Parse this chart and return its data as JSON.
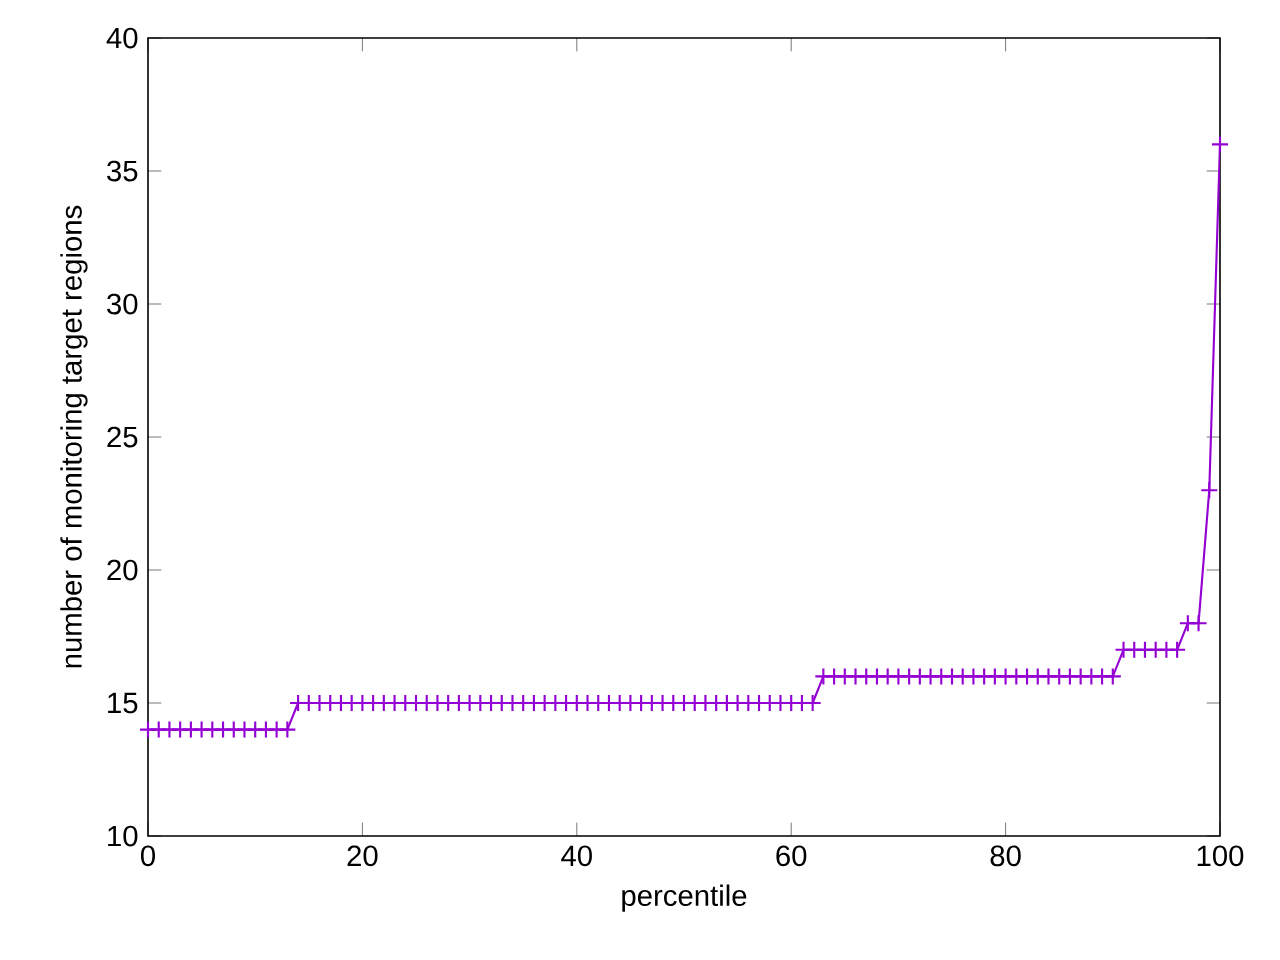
{
  "chart_data": {
    "type": "line",
    "xlabel": "percentile",
    "ylabel": "number of monitoring target regions",
    "x": [
      0,
      1,
      2,
      3,
      4,
      5,
      6,
      7,
      8,
      9,
      10,
      11,
      12,
      13,
      14,
      15,
      16,
      17,
      18,
      19,
      20,
      21,
      22,
      23,
      24,
      25,
      26,
      27,
      28,
      29,
      30,
      31,
      32,
      33,
      34,
      35,
      36,
      37,
      38,
      39,
      40,
      41,
      42,
      43,
      44,
      45,
      46,
      47,
      48,
      49,
      50,
      51,
      52,
      53,
      54,
      55,
      56,
      57,
      58,
      59,
      60,
      61,
      62,
      63,
      64,
      65,
      66,
      67,
      68,
      69,
      70,
      71,
      72,
      73,
      74,
      75,
      76,
      77,
      78,
      79,
      80,
      81,
      82,
      83,
      84,
      85,
      86,
      87,
      88,
      89,
      90,
      91,
      92,
      93,
      94,
      95,
      96,
      97,
      98,
      99,
      100
    ],
    "series": [
      {
        "color": "#9400d3",
        "values": [
          14,
          14,
          14,
          14,
          14,
          14,
          14,
          14,
          14,
          14,
          14,
          14,
          14,
          14,
          15,
          15,
          15,
          15,
          15,
          15,
          15,
          15,
          15,
          15,
          15,
          15,
          15,
          15,
          15,
          15,
          15,
          15,
          15,
          15,
          15,
          15,
          15,
          15,
          15,
          15,
          15,
          15,
          15,
          15,
          15,
          15,
          15,
          15,
          15,
          15,
          15,
          15,
          15,
          15,
          15,
          15,
          15,
          15,
          15,
          15,
          15,
          15,
          15,
          16,
          16,
          16,
          16,
          16,
          16,
          16,
          16,
          16,
          16,
          16,
          16,
          16,
          16,
          16,
          16,
          16,
          16,
          16,
          16,
          16,
          16,
          16,
          16,
          16,
          16,
          16,
          16,
          17,
          17,
          17,
          17,
          17,
          17,
          18,
          18,
          23,
          36
        ]
      }
    ],
    "xlim": [
      0,
      100
    ],
    "xticks": [
      0,
      20,
      40,
      60,
      80,
      100
    ],
    "ylim": [
      10,
      40
    ],
    "yticks": [
      10,
      15,
      20,
      25,
      30,
      35,
      40
    ],
    "marker": "cross",
    "line_style": "solid",
    "grid": false
  }
}
